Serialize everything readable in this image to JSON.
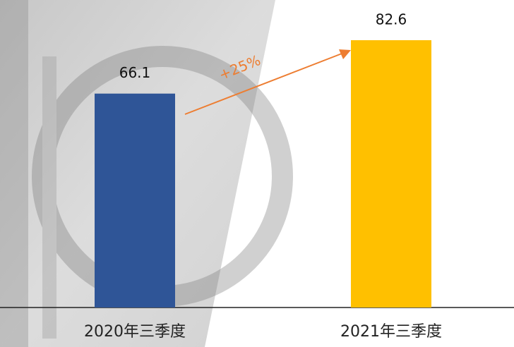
{
  "chart_data": {
    "type": "bar",
    "categories": [
      "2020年三季度",
      "2021年三季度"
    ],
    "values": [
      66.1,
      82.6
    ],
    "colors": [
      "#2f5597",
      "#ffc000"
    ],
    "annotation": "+25%",
    "annotation_color": "#ed7d31"
  }
}
